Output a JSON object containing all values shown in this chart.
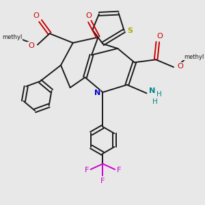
{
  "bg": "#e8e8e8",
  "bc": "#1a1a1a",
  "red": "#cc0000",
  "blue": "#0000cc",
  "teal": "#008888",
  "yellow": "#aaaa00",
  "magenta": "#cc00cc",
  "lw": 1.4,
  "xlim": [
    0,
    10
  ],
  "ylim": [
    -0.5,
    10.5
  ]
}
